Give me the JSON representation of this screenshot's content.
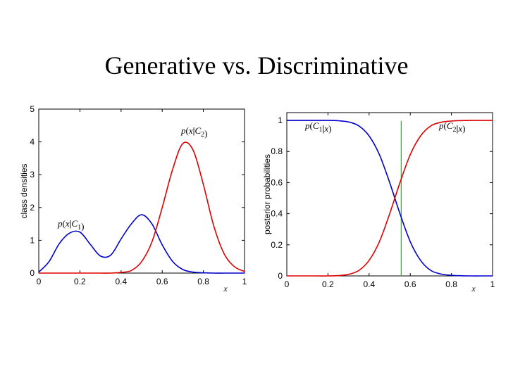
{
  "slide": {
    "title": "Generative vs. Discriminative"
  },
  "chart_data": [
    {
      "type": "line",
      "title": "",
      "xlabel": "x",
      "ylabel": "class densities",
      "xlim": [
        0,
        1
      ],
      "ylim": [
        0,
        5
      ],
      "xticks": [
        "0",
        "0.2",
        "0.4",
        "0.6",
        "0.8",
        "1"
      ],
      "yticks": [
        "0",
        "1",
        "2",
        "3",
        "4",
        "5"
      ],
      "grid": false,
      "x": [
        0,
        0.05,
        0.1,
        0.15,
        0.2,
        0.25,
        0.3,
        0.35,
        0.4,
        0.45,
        0.5,
        0.55,
        0.6,
        0.65,
        0.7,
        0.75,
        0.8,
        0.85,
        0.9,
        0.95,
        1
      ],
      "series": [
        {
          "name": "p(x|C1)",
          "color": "#0000cc",
          "values": [
            0.03,
            0.35,
            0.9,
            1.22,
            1.25,
            0.88,
            0.52,
            0.55,
            1.04,
            1.5,
            1.78,
            1.5,
            0.86,
            0.36,
            0.11,
            0.03,
            0.01,
            0,
            0,
            0,
            0
          ]
        },
        {
          "name": "p(x|C2)",
          "color": "#dd0000",
          "values": [
            0,
            0,
            0,
            0,
            0,
            0,
            0,
            0,
            0.02,
            0.08,
            0.35,
            0.95,
            2.0,
            3.15,
            3.95,
            3.75,
            2.7,
            1.45,
            0.6,
            0.2,
            0.05
          ]
        }
      ],
      "annotations": [
        {
          "text_parts": [
            "p",
            "(",
            "x",
            "|",
            "C",
            "1",
            ")"
          ]
        },
        {
          "text_parts": [
            "p",
            "(",
            "x",
            "|",
            "C",
            "2",
            ")"
          ]
        }
      ]
    },
    {
      "type": "line",
      "title": "",
      "xlabel": "x",
      "ylabel": "posterior probabilities",
      "xlim": [
        0,
        1
      ],
      "ylim": [
        0,
        1.05
      ],
      "xticks": [
        "0",
        "0.2",
        "0.4",
        "0.6",
        "0.8",
        "1"
      ],
      "yticks": [
        "0",
        "0.2",
        "0.4",
        "0.6",
        "0.8",
        "1"
      ],
      "grid": false,
      "x": [
        0,
        0.05,
        0.1,
        0.15,
        0.2,
        0.25,
        0.3,
        0.35,
        0.4,
        0.45,
        0.5,
        0.55,
        0.6,
        0.65,
        0.7,
        0.75,
        0.8,
        0.85,
        0.9,
        0.95,
        1
      ],
      "series": [
        {
          "name": "p(C1|x)",
          "color": "#0000cc",
          "values": [
            1,
            1,
            1,
            1,
            1,
            0.998,
            0.99,
            0.965,
            0.9,
            0.78,
            0.6,
            0.4,
            0.22,
            0.1,
            0.035,
            0.012,
            0.004,
            0.001,
            0,
            0,
            0
          ]
        },
        {
          "name": "p(C2|x)",
          "color": "#dd0000",
          "values": [
            0,
            0,
            0,
            0,
            0,
            0.002,
            0.01,
            0.035,
            0.1,
            0.22,
            0.4,
            0.6,
            0.78,
            0.9,
            0.965,
            0.988,
            0.996,
            0.999,
            1,
            1,
            1
          ]
        }
      ],
      "vline": {
        "x": 0.556,
        "color": "#00cc00"
      },
      "annotations": [
        {
          "text_parts": [
            "p",
            "(",
            "C",
            "1",
            "|",
            "x",
            ")"
          ]
        },
        {
          "text_parts": [
            "p",
            "(",
            "C",
            "2",
            "|",
            "x",
            ")"
          ]
        }
      ]
    }
  ]
}
